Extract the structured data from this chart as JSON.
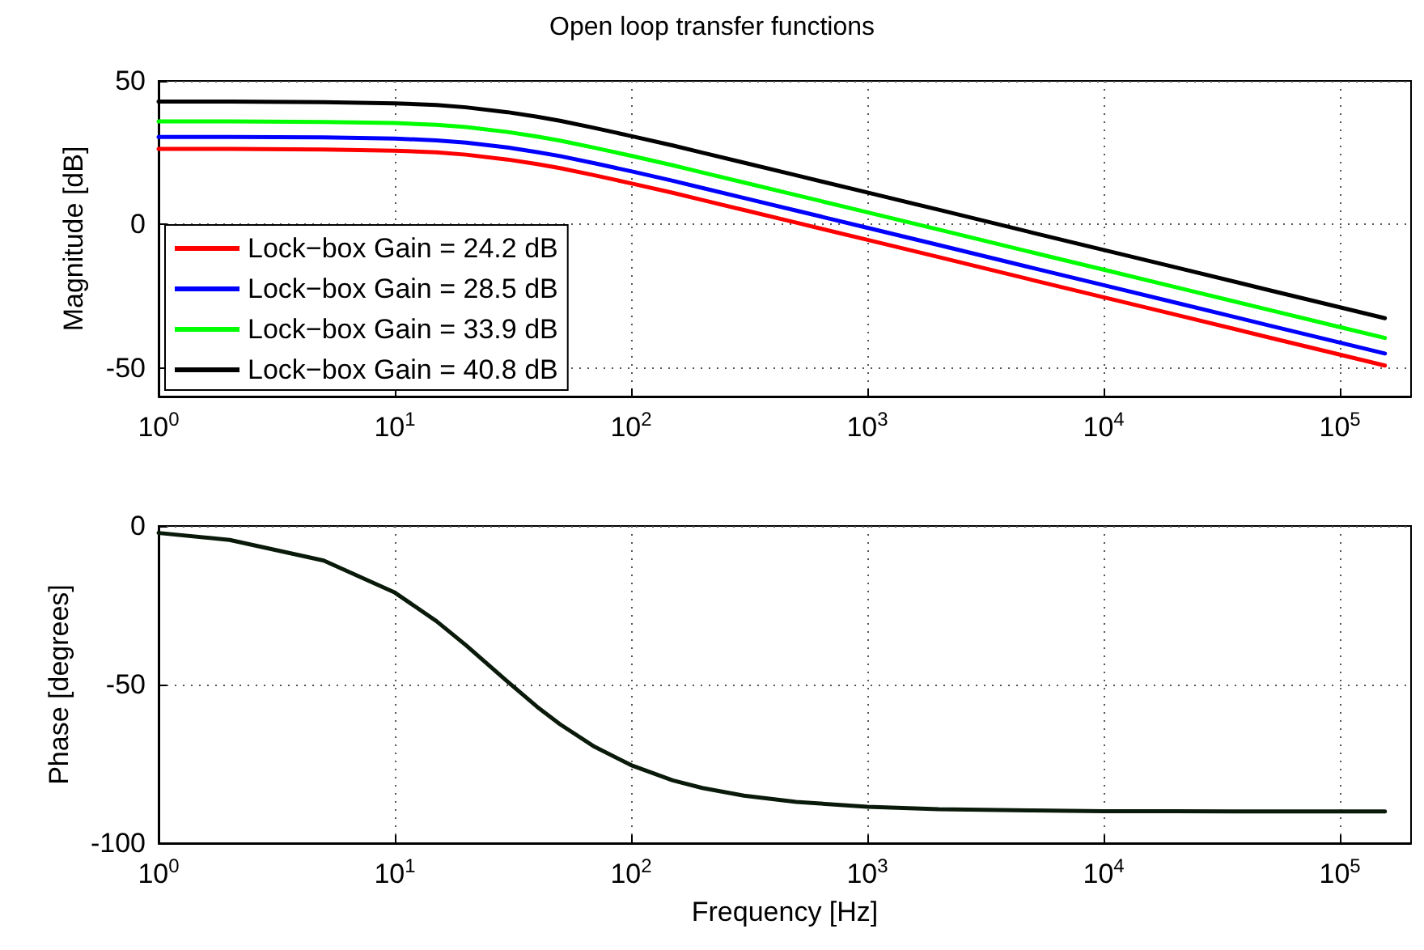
{
  "chart_data": [
    {
      "type": "line",
      "title": "Open loop transfer functions",
      "ylabel": "Magnitude [dB]",
      "log": "x",
      "grid": true,
      "legend": "bottom left",
      "xlim": [
        1,
        200000
      ],
      "xticks": [
        {
          "value": 1,
          "label": "10$^{0}$"
        },
        {
          "value": 10,
          "label": "10$^{1}$"
        },
        {
          "value": 100,
          "label": "10$^{2}$"
        },
        {
          "value": 1000,
          "label": "10$^{3}$"
        },
        {
          "value": 10000,
          "label": "10$^{4}$"
        },
        {
          "value": 100000,
          "label": "10$^{5}$"
        }
      ],
      "ylim": [
        -60,
        50
      ],
      "yticks": [
        -50,
        0,
        50
      ],
      "x": [
        1,
        2,
        5,
        10,
        15,
        20,
        30,
        40,
        50,
        70,
        100,
        150,
        200,
        300,
        500,
        1000,
        2000,
        5000,
        10000,
        20000,
        50000,
        100000,
        155000
      ],
      "series": [
        {
          "name": "Lock−box Gain = 24.2 dB",
          "color": "#ff0000",
          "values": [
            26.3,
            26.3,
            26.1,
            25.7,
            25.1,
            24.3,
            22.6,
            21.0,
            19.6,
            17.1,
            14.3,
            11.0,
            8.5,
            5.0,
            0.6,
            -5.4,
            -11.4,
            -19.4,
            -25.4,
            -31.4,
            -39.4,
            -45.4,
            -49.2
          ]
        },
        {
          "name": "Lock−box Gain = 28.5 dB",
          "color": "#0000ff",
          "values": [
            30.5,
            30.5,
            30.3,
            29.9,
            29.3,
            28.5,
            26.8,
            25.2,
            23.8,
            21.3,
            18.5,
            15.2,
            12.7,
            9.2,
            4.8,
            -1.2,
            -7.2,
            -15.2,
            -21.2,
            -27.2,
            -35.2,
            -41.2,
            -45.0
          ]
        },
        {
          "name": "Lock−box Gain = 33.9 dB",
          "color": "#00ff00",
          "values": [
            35.9,
            35.9,
            35.7,
            35.3,
            34.7,
            33.9,
            32.2,
            30.6,
            29.2,
            26.7,
            23.9,
            20.6,
            18.1,
            14.6,
            10.2,
            4.2,
            -1.8,
            -9.8,
            -15.8,
            -21.8,
            -29.8,
            -35.8,
            -39.6
          ]
        },
        {
          "name": "Lock−box Gain = 40.8 dB",
          "color": "#000000",
          "values": [
            42.8,
            42.8,
            42.6,
            42.2,
            41.6,
            40.8,
            39.1,
            37.5,
            36.1,
            33.6,
            30.8,
            27.5,
            25.0,
            21.5,
            17.1,
            11.1,
            5.1,
            -2.9,
            -8.9,
            -14.9,
            -22.9,
            -28.9,
            -32.7
          ]
        }
      ]
    },
    {
      "type": "line",
      "xlabel": "Frequency [Hz]",
      "ylabel": "Phase [degrees]",
      "log": "x",
      "grid": true,
      "xlim": [
        1,
        200000
      ],
      "xticks": [
        {
          "value": 1,
          "label": "10$^{0}$"
        },
        {
          "value": 10,
          "label": "10$^{1}$"
        },
        {
          "value": 100,
          "label": "10$^{2}$"
        },
        {
          "value": 1000,
          "label": "10$^{3}$"
        },
        {
          "value": 10000,
          "label": "10$^{4}$"
        },
        {
          "value": 100000,
          "label": "10$^{5}$"
        }
      ],
      "ylim": [
        -100,
        0
      ],
      "yticks": [
        -100,
        -50,
        0
      ],
      "x": [
        1,
        2,
        5,
        10,
        15,
        20,
        30,
        40,
        50,
        70,
        100,
        150,
        200,
        300,
        500,
        1000,
        2000,
        5000,
        10000,
        20000,
        50000,
        100000,
        155000
      ],
      "series": [
        {
          "color": "#0a1a0a",
          "values": [
            -2.2,
            -4.4,
            -10.9,
            -21.0,
            -30.0,
            -37.6,
            -49.1,
            -57.0,
            -62.5,
            -69.6,
            -75.4,
            -80.2,
            -82.6,
            -85.0,
            -87.0,
            -88.5,
            -89.3,
            -89.7,
            -89.9,
            -89.9,
            -90.0,
            -90.0,
            -90.0
          ]
        }
      ]
    }
  ]
}
